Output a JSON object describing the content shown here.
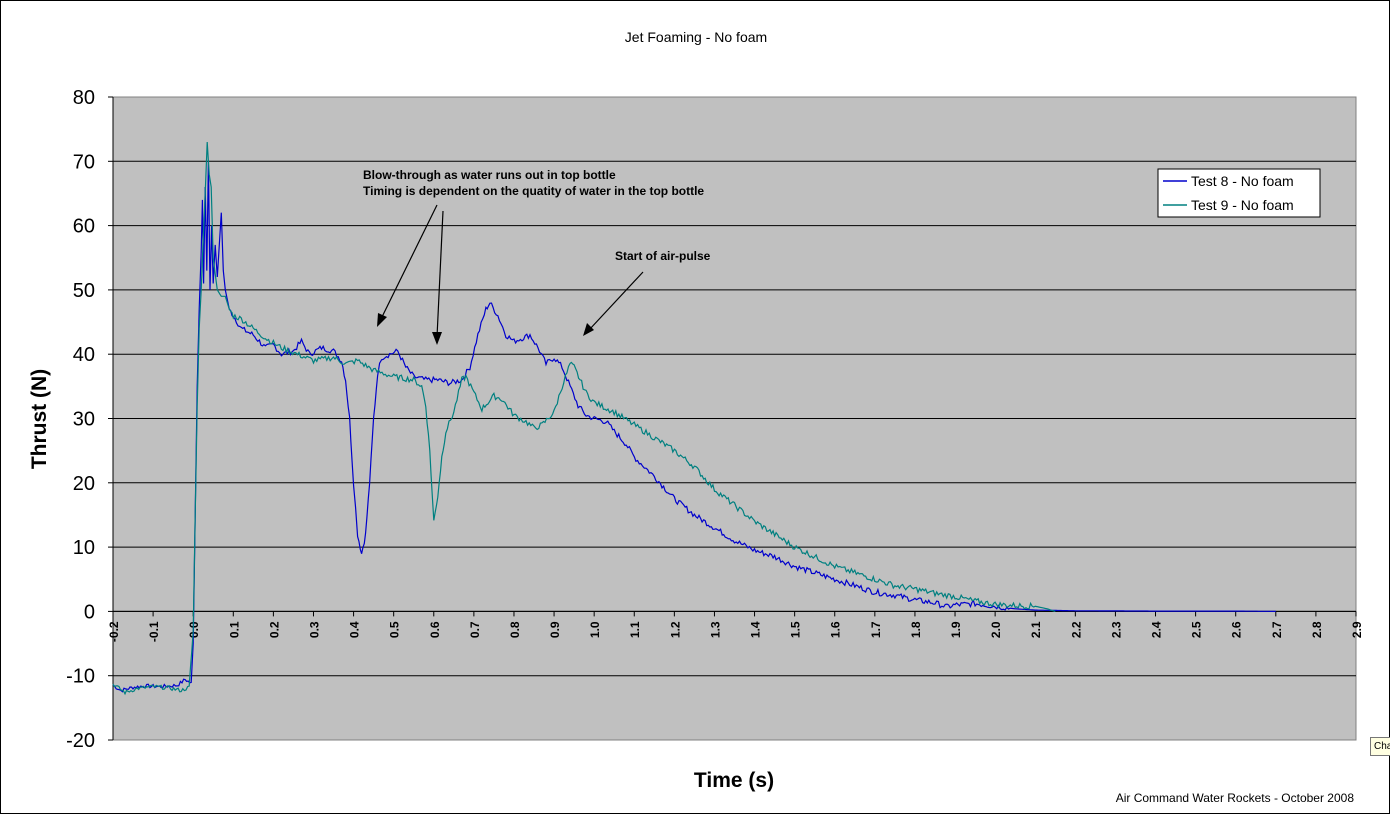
{
  "chart_data": {
    "type": "line",
    "title": "Jet Foaming - No foam",
    "xlabel": "Time (s)",
    "ylabel": "Thrust (N)",
    "xlim": [
      -0.2,
      2.9
    ],
    "ylim": [
      -20,
      80
    ],
    "x_ticks": [
      "-0.2",
      "-0.1",
      "0.0",
      "0.1",
      "0.2",
      "0.3",
      "0.4",
      "0.5",
      "0.6",
      "0.7",
      "0.8",
      "0.9",
      "1.0",
      "1.1",
      "1.2",
      "1.3",
      "1.4",
      "1.5",
      "1.6",
      "1.7",
      "1.8",
      "1.9",
      "2.0",
      "2.1",
      "2.2",
      "2.3",
      "2.4",
      "2.5",
      "2.6",
      "2.7",
      "2.8",
      "2.9"
    ],
    "y_ticks": [
      "-20",
      "-10",
      "0",
      "10",
      "20",
      "30",
      "40",
      "50",
      "60",
      "70",
      "80"
    ],
    "grid": "horizontal",
    "legend_position": "top-right",
    "series": [
      {
        "name": "Test 8 - No foam",
        "color": "#0000cc",
        "points": [
          [
            -0.2,
            -11.5
          ],
          [
            -0.18,
            -12.3
          ],
          [
            -0.15,
            -11.8
          ],
          [
            -0.12,
            -11.6
          ],
          [
            -0.08,
            -11.7
          ],
          [
            -0.04,
            -11.5
          ],
          [
            -0.02,
            -10.6
          ],
          [
            -0.005,
            -11.2
          ],
          [
            0.0,
            -5
          ],
          [
            0.005,
            15
          ],
          [
            0.01,
            35
          ],
          [
            0.015,
            47
          ],
          [
            0.02,
            56
          ],
          [
            0.023,
            64
          ],
          [
            0.026,
            51
          ],
          [
            0.03,
            66
          ],
          [
            0.034,
            53
          ],
          [
            0.038,
            70
          ],
          [
            0.042,
            50
          ],
          [
            0.046,
            60
          ],
          [
            0.05,
            51
          ],
          [
            0.055,
            57
          ],
          [
            0.06,
            52
          ],
          [
            0.065,
            57
          ],
          [
            0.07,
            62
          ],
          [
            0.075,
            53
          ],
          [
            0.08,
            50
          ],
          [
            0.09,
            47
          ],
          [
            0.1,
            46
          ],
          [
            0.12,
            44
          ],
          [
            0.15,
            43
          ],
          [
            0.18,
            41
          ],
          [
            0.2,
            41.5
          ],
          [
            0.22,
            40
          ],
          [
            0.25,
            40.5
          ],
          [
            0.27,
            42
          ],
          [
            0.29,
            40
          ],
          [
            0.32,
            41
          ],
          [
            0.35,
            40.5
          ],
          [
            0.37,
            39
          ],
          [
            0.38,
            36
          ],
          [
            0.39,
            30
          ],
          [
            0.4,
            20
          ],
          [
            0.41,
            12
          ],
          [
            0.42,
            9
          ],
          [
            0.43,
            12
          ],
          [
            0.44,
            20
          ],
          [
            0.45,
            30
          ],
          [
            0.46,
            37
          ],
          [
            0.47,
            39.5
          ],
          [
            0.49,
            40
          ],
          [
            0.51,
            40.5
          ],
          [
            0.53,
            38
          ],
          [
            0.55,
            36.5
          ],
          [
            0.58,
            36
          ],
          [
            0.61,
            36
          ],
          [
            0.64,
            35.5
          ],
          [
            0.67,
            36
          ],
          [
            0.69,
            38
          ],
          [
            0.71,
            43
          ],
          [
            0.73,
            47
          ],
          [
            0.74,
            48
          ],
          [
            0.76,
            46
          ],
          [
            0.78,
            43
          ],
          [
            0.8,
            42
          ],
          [
            0.82,
            42.5
          ],
          [
            0.84,
            43
          ],
          [
            0.86,
            41
          ],
          [
            0.88,
            38.5
          ],
          [
            0.9,
            39.5
          ],
          [
            0.92,
            38
          ],
          [
            0.94,
            35
          ],
          [
            0.96,
            32
          ],
          [
            0.98,
            30.5
          ],
          [
            1.0,
            30
          ],
          [
            1.03,
            29.5
          ],
          [
            1.05,
            28
          ],
          [
            1.08,
            26
          ],
          [
            1.1,
            24
          ],
          [
            1.15,
            21
          ],
          [
            1.2,
            17.5
          ],
          [
            1.25,
            15
          ],
          [
            1.3,
            13
          ],
          [
            1.35,
            11
          ],
          [
            1.4,
            9.5
          ],
          [
            1.45,
            8.5
          ],
          [
            1.5,
            7
          ],
          [
            1.55,
            6
          ],
          [
            1.6,
            5
          ],
          [
            1.65,
            4
          ],
          [
            1.7,
            3
          ],
          [
            1.75,
            2.5
          ],
          [
            1.8,
            1.8
          ],
          [
            1.85,
            1.3
          ],
          [
            1.88,
            0.7
          ],
          [
            1.9,
            1
          ],
          [
            1.95,
            1.2
          ],
          [
            2.0,
            0.8
          ],
          [
            2.05,
            0.4
          ],
          [
            2.1,
            0.2
          ],
          [
            2.2,
            0.1
          ],
          [
            2.4,
            0.05
          ],
          [
            2.6,
            0.05
          ],
          [
            2.7,
            0
          ]
        ]
      },
      {
        "name": "Test 9 - No foam",
        "color": "#008080",
        "points": [
          [
            -0.2,
            -11.3
          ],
          [
            -0.17,
            -12.6
          ],
          [
            -0.14,
            -12.0
          ],
          [
            -0.1,
            -11.7
          ],
          [
            -0.06,
            -11.9
          ],
          [
            -0.03,
            -12.3
          ],
          [
            -0.01,
            -11.8
          ],
          [
            0.0,
            -3
          ],
          [
            0.005,
            15
          ],
          [
            0.01,
            32
          ],
          [
            0.015,
            44
          ],
          [
            0.02,
            50
          ],
          [
            0.025,
            58
          ],
          [
            0.03,
            65
          ],
          [
            0.035,
            73
          ],
          [
            0.04,
            68
          ],
          [
            0.045,
            66
          ],
          [
            0.05,
            55
          ],
          [
            0.06,
            50
          ],
          [
            0.07,
            49
          ],
          [
            0.08,
            49
          ],
          [
            0.09,
            47
          ],
          [
            0.1,
            46
          ],
          [
            0.12,
            45.5
          ],
          [
            0.15,
            44
          ],
          [
            0.18,
            42.5
          ],
          [
            0.22,
            41
          ],
          [
            0.26,
            40
          ],
          [
            0.3,
            39
          ],
          [
            0.35,
            39.5
          ],
          [
            0.38,
            38.5
          ],
          [
            0.41,
            39
          ],
          [
            0.45,
            37.5
          ],
          [
            0.5,
            36.5
          ],
          [
            0.55,
            36
          ],
          [
            0.57,
            35
          ],
          [
            0.58,
            32
          ],
          [
            0.59,
            25
          ],
          [
            0.6,
            14
          ],
          [
            0.61,
            18
          ],
          [
            0.62,
            24
          ],
          [
            0.63,
            28
          ],
          [
            0.65,
            31
          ],
          [
            0.67,
            36
          ],
          [
            0.68,
            36.5
          ],
          [
            0.7,
            34
          ],
          [
            0.72,
            31.5
          ],
          [
            0.75,
            33.5
          ],
          [
            0.77,
            33
          ],
          [
            0.8,
            30.5
          ],
          [
            0.83,
            29.5
          ],
          [
            0.85,
            28.5
          ],
          [
            0.87,
            29
          ],
          [
            0.9,
            31
          ],
          [
            0.92,
            35
          ],
          [
            0.94,
            38.5
          ],
          [
            0.95,
            38
          ],
          [
            0.98,
            34
          ],
          [
            1.0,
            32.5
          ],
          [
            1.05,
            31
          ],
          [
            1.1,
            29
          ],
          [
            1.15,
            27
          ],
          [
            1.2,
            25
          ],
          [
            1.25,
            22.5
          ],
          [
            1.3,
            19
          ],
          [
            1.35,
            16.5
          ],
          [
            1.4,
            14
          ],
          [
            1.45,
            12
          ],
          [
            1.5,
            10
          ],
          [
            1.55,
            8.5
          ],
          [
            1.6,
            7
          ],
          [
            1.65,
            6
          ],
          [
            1.7,
            5
          ],
          [
            1.75,
            4
          ],
          [
            1.8,
            3.5
          ],
          [
            1.85,
            2.8
          ],
          [
            1.9,
            2.3
          ],
          [
            1.95,
            1.6
          ],
          [
            2.0,
            1.1
          ],
          [
            2.05,
            0.9
          ],
          [
            2.1,
            0.8
          ],
          [
            2.13,
            0.4
          ],
          [
            2.15,
            0
          ]
        ]
      }
    ],
    "annotations": [
      {
        "lines": [
          "Blow-through as water runs out in top bottle",
          "Timing is dependent on the quatity of water in the top bottle"
        ]
      },
      {
        "lines": [
          "Start of air-pulse"
        ]
      }
    ],
    "footer": "Air Command Water Rockets - October 2008"
  },
  "tooltip": "Cha"
}
